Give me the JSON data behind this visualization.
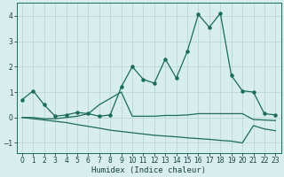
{
  "xlabel": "Humidex (Indice chaleur)",
  "bg_color": "#d8eeee",
  "grid_color": "#b8d8d8",
  "line_color": "#1a6b5a",
  "ylim": [
    -1.4,
    4.5
  ],
  "xlim": [
    -0.5,
    23.5
  ],
  "yticks": [
    -1,
    0,
    1,
    2,
    3,
    4
  ],
  "xticks": [
    0,
    1,
    2,
    3,
    4,
    5,
    6,
    7,
    8,
    9,
    10,
    11,
    12,
    13,
    14,
    15,
    16,
    17,
    18,
    19,
    20,
    21,
    22,
    23
  ],
  "series1_x": [
    0,
    1,
    2,
    3,
    4,
    5,
    6,
    7,
    8,
    9,
    10,
    11,
    12,
    13,
    14,
    15,
    16,
    17,
    18,
    19,
    20,
    21,
    22,
    23
  ],
  "series1_y": [
    0.7,
    1.05,
    0.5,
    0.05,
    0.1,
    0.2,
    0.15,
    0.05,
    0.1,
    1.2,
    2.0,
    1.5,
    1.35,
    2.3,
    1.55,
    2.6,
    4.05,
    3.55,
    4.1,
    1.65,
    1.05,
    1.0,
    0.15,
    0.1
  ],
  "series2_x": [
    0,
    1,
    2,
    3,
    4,
    5,
    6,
    7,
    8,
    9,
    10,
    11,
    12,
    13,
    14,
    15,
    16,
    17,
    18,
    19,
    20,
    21,
    22,
    23
  ],
  "series2_y": [
    0.0,
    0.0,
    -0.05,
    -0.05,
    0.0,
    0.05,
    0.15,
    0.5,
    0.75,
    1.0,
    0.05,
    0.05,
    0.05,
    0.08,
    0.08,
    0.1,
    0.15,
    0.15,
    0.15,
    0.15,
    0.15,
    -0.08,
    -0.1,
    -0.12
  ],
  "series3_x": [
    0,
    1,
    2,
    3,
    4,
    5,
    6,
    7,
    8,
    9,
    10,
    11,
    12,
    13,
    14,
    15,
    16,
    17,
    18,
    19,
    20,
    21,
    22,
    23
  ],
  "series3_y": [
    0.0,
    -0.05,
    -0.1,
    -0.15,
    -0.2,
    -0.28,
    -0.35,
    -0.42,
    -0.5,
    -0.55,
    -0.6,
    -0.65,
    -0.7,
    -0.73,
    -0.76,
    -0.8,
    -0.83,
    -0.86,
    -0.9,
    -0.93,
    -1.0,
    -0.32,
    -0.45,
    -0.52
  ]
}
